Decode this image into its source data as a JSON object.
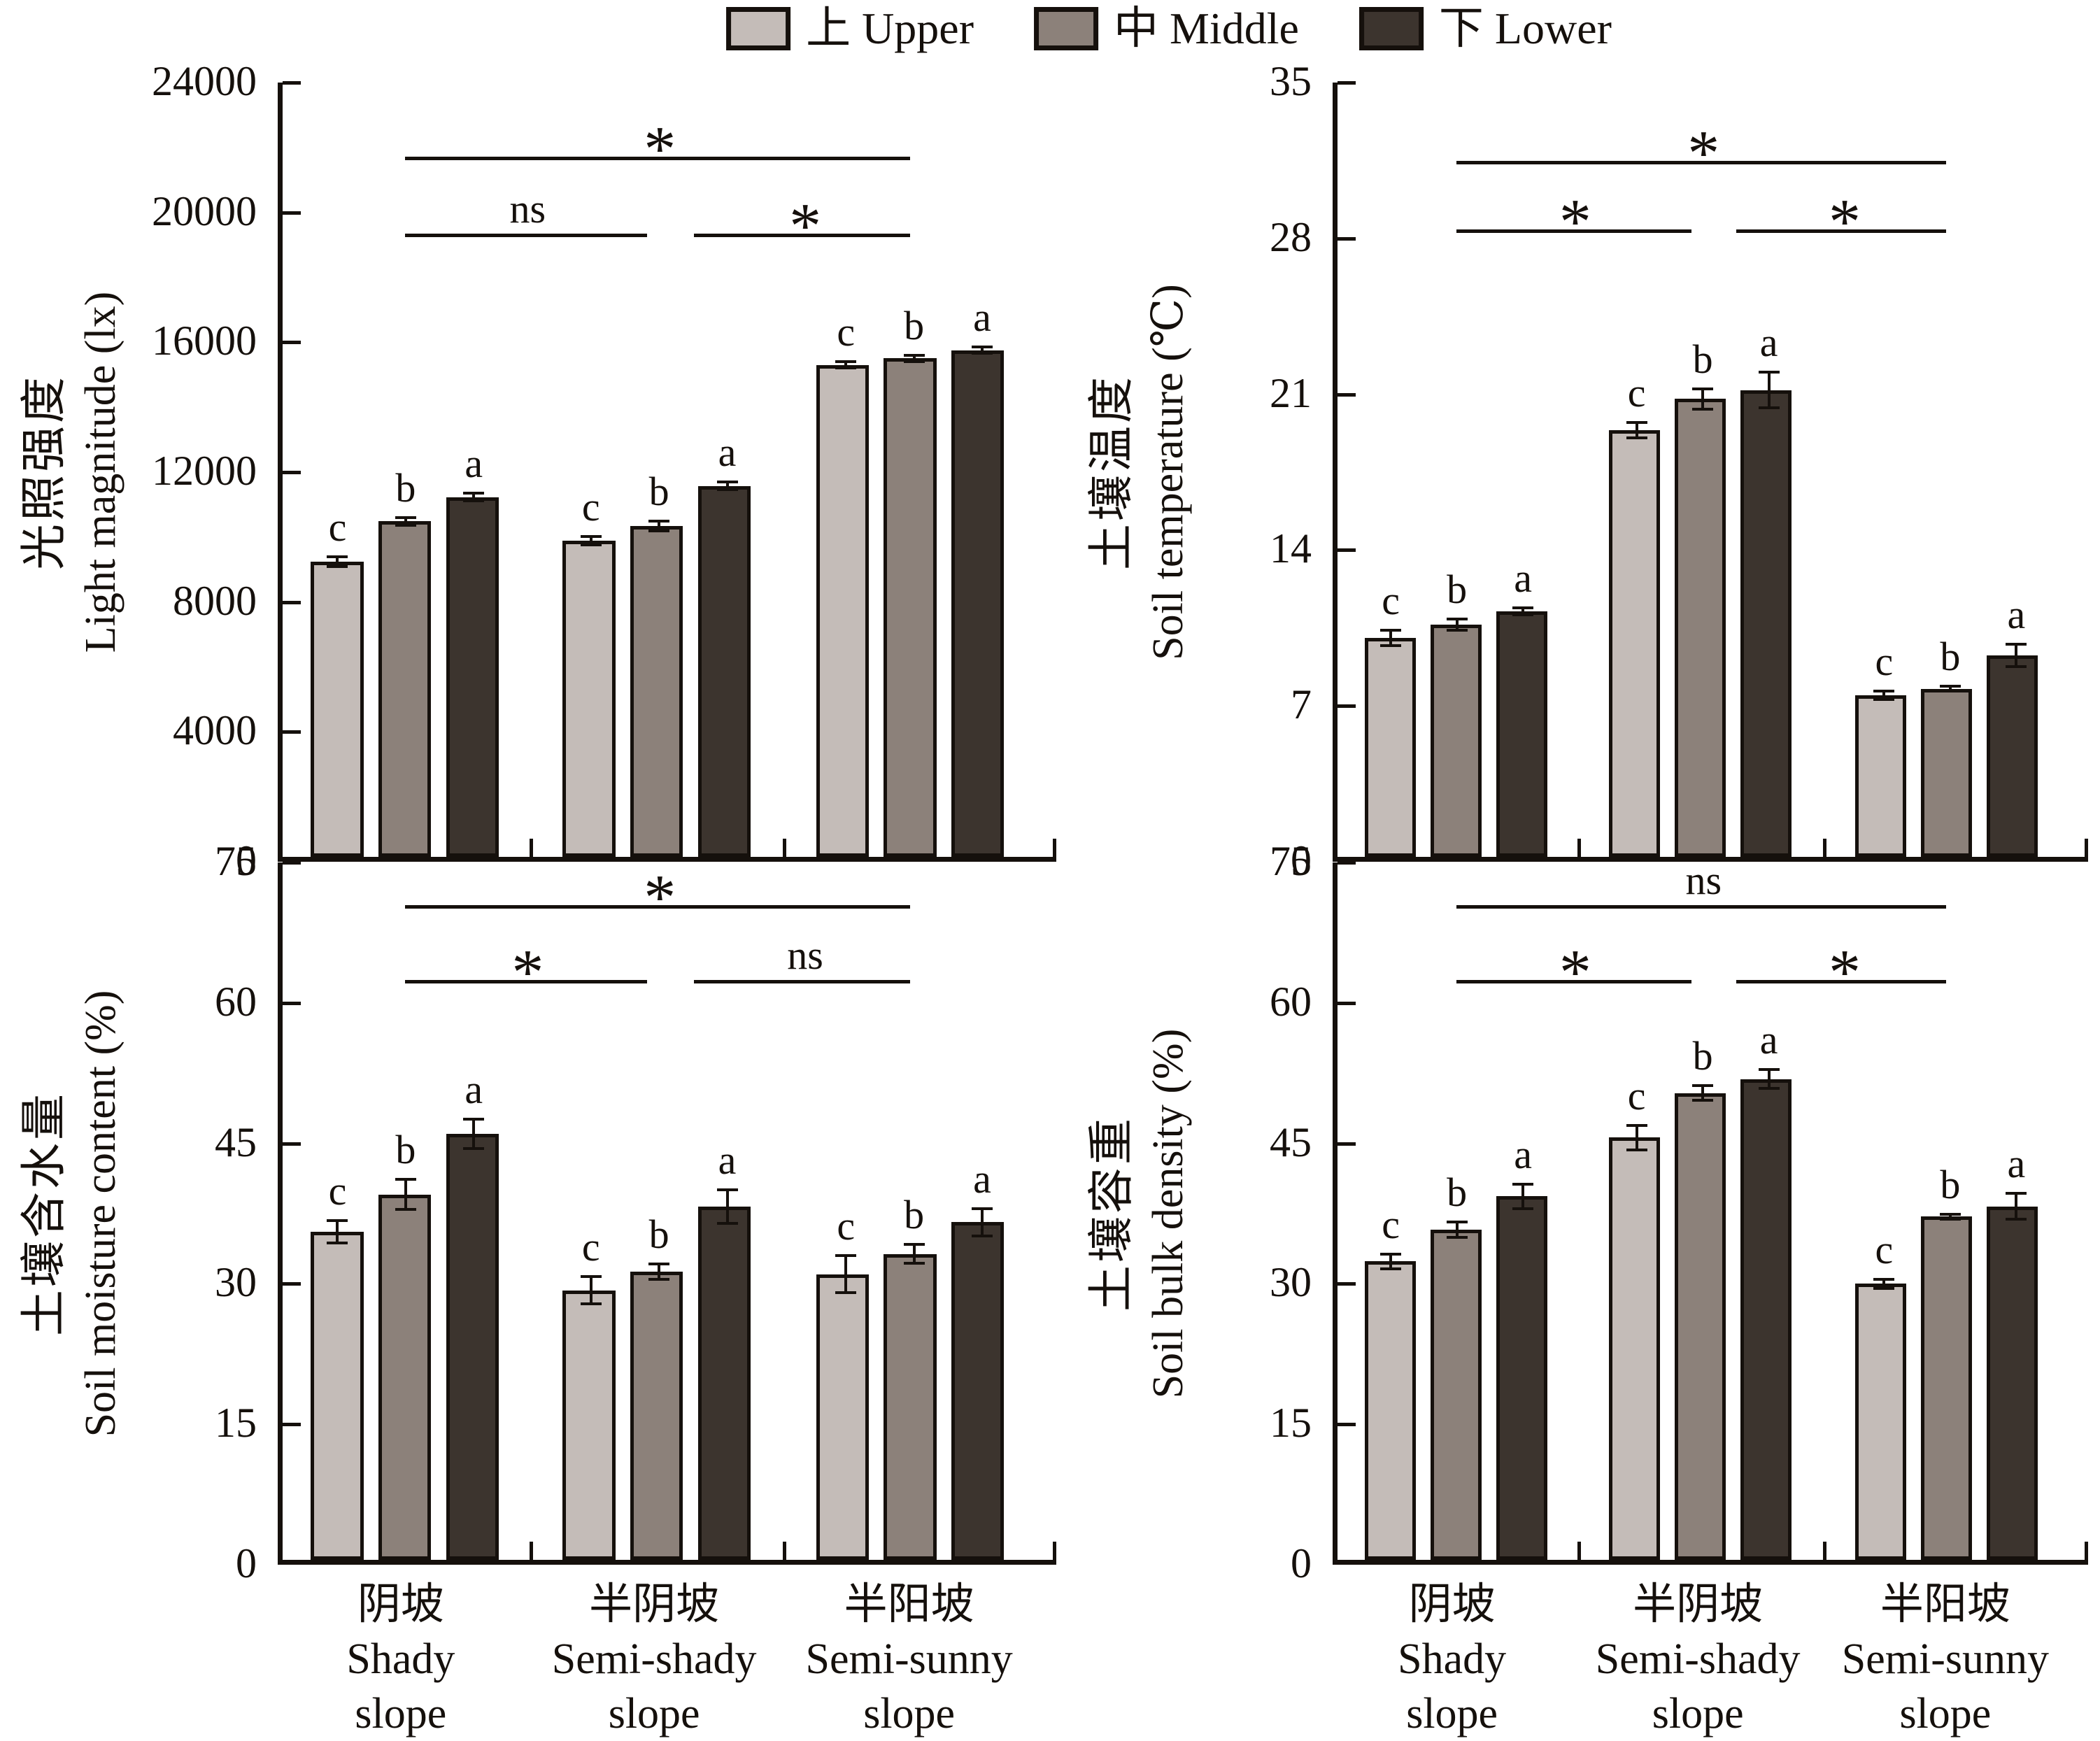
{
  "legend": {
    "items": [
      {
        "cn": "上",
        "en": "Upper",
        "color": "#c4bcb8"
      },
      {
        "cn": "中",
        "en": "Middle",
        "color": "#8c817a"
      },
      {
        "cn": "下",
        "en": "Lower",
        "color": "#3c342e"
      }
    ]
  },
  "categories": [
    {
      "cn": "阴坡",
      "en_line1": "Shady",
      "en_line2": "slope"
    },
    {
      "cn": "半阴坡",
      "en_line1": "Semi-shady",
      "en_line2": "slope"
    },
    {
      "cn": "半阳坡",
      "en_line1": "Semi-sunny",
      "en_line2": "slope"
    }
  ],
  "chart_data": [
    {
      "type": "bar",
      "id": "light-magnitude",
      "position": "top-left",
      "title_cn": "光照强度",
      "title_en": "Light magnitude (lx)",
      "ylim": [
        0,
        24000
      ],
      "ytick_step": 4000,
      "grid": false,
      "categories": [
        "阴坡 Shady slope",
        "半阴坡 Semi-shady slope",
        "半阳坡 Semi-sunny slope"
      ],
      "series": [
        {
          "name": "上 Upper",
          "values": [
            9150,
            9800,
            15250
          ],
          "errors": [
            150,
            120,
            100
          ]
        },
        {
          "name": "中 Middle",
          "values": [
            10400,
            10250,
            15450
          ],
          "errors": [
            120,
            150,
            100
          ]
        },
        {
          "name": "下 Lower",
          "values": [
            11150,
            11500,
            15700
          ],
          "errors": [
            120,
            120,
            100
          ]
        }
      ],
      "sig_letters": [
        [
          "c",
          "b",
          "a"
        ],
        [
          "c",
          "b",
          "a"
        ],
        [
          "c",
          "b",
          "a"
        ]
      ],
      "brackets": [
        {
          "from": 0,
          "to": 2,
          "label": "*",
          "level": 21600
        },
        {
          "from": 0,
          "to": 1,
          "label": "ns",
          "level": 19200
        },
        {
          "from": 1,
          "to": 2,
          "label": "*",
          "level": 19200
        }
      ]
    },
    {
      "type": "bar",
      "id": "soil-temperature",
      "position": "top-right",
      "title_cn": "土壤温度",
      "title_en": "Soil temperature (℃)",
      "ylim": [
        0,
        35
      ],
      "ytick_step": 7,
      "grid": false,
      "categories": [
        "阴坡 Shady slope",
        "半阴坡 Semi-shady slope",
        "半阳坡 Semi-sunny slope"
      ],
      "series": [
        {
          "name": "上 Upper",
          "values": [
            9.9,
            19.3,
            7.3
          ],
          "errors": [
            0.35,
            0.35,
            0.2
          ]
        },
        {
          "name": "中 Middle",
          "values": [
            10.5,
            20.7,
            7.6
          ],
          "errors": [
            0.25,
            0.45,
            0.12
          ]
        },
        {
          "name": "下 Lower",
          "values": [
            11.1,
            21.1,
            9.1
          ],
          "errors": [
            0.15,
            0.8,
            0.5
          ]
        }
      ],
      "sig_letters": [
        [
          "c",
          "b",
          "a"
        ],
        [
          "c",
          "b",
          "a"
        ],
        [
          "c",
          "b",
          "a"
        ]
      ],
      "brackets": [
        {
          "from": 0,
          "to": 2,
          "label": "*",
          "level": 31.3
        },
        {
          "from": 0,
          "to": 1,
          "label": "*",
          "level": 28.2
        },
        {
          "from": 1,
          "to": 2,
          "label": "*",
          "level": 28.2
        }
      ]
    },
    {
      "type": "bar",
      "id": "soil-moisture-content",
      "position": "bottom-left",
      "title_cn": "土壤含水量",
      "title_en": "Soil moisture content (%)",
      "ylim": [
        0,
        75
      ],
      "ytick_step": 15,
      "grid": false,
      "categories": [
        "阴坡 Shady slope",
        "半阴坡 Semi-shady slope",
        "半阳坡 Semi-sunny slope"
      ],
      "series": [
        {
          "name": "上 Upper",
          "values": [
            35.3,
            29.0,
            30.7
          ],
          "errors": [
            1.2,
            1.5,
            2.0
          ]
        },
        {
          "name": "中 Middle",
          "values": [
            39.3,
            31.0,
            32.9
          ],
          "errors": [
            1.6,
            0.8,
            1.0
          ]
        },
        {
          "name": "下 Lower",
          "values": [
            45.8,
            38.0,
            36.3
          ],
          "errors": [
            1.6,
            1.8,
            1.5
          ]
        }
      ],
      "sig_letters": [
        [
          "c",
          "b",
          "a"
        ],
        [
          "c",
          "b",
          "a"
        ],
        [
          "c",
          "b",
          "a"
        ]
      ],
      "brackets": [
        {
          "from": 0,
          "to": 2,
          "label": "*",
          "level": 70
        },
        {
          "from": 0,
          "to": 1,
          "label": "*",
          "level": 62
        },
        {
          "from": 1,
          "to": 2,
          "label": "ns",
          "level": 62
        }
      ]
    },
    {
      "type": "bar",
      "id": "soil-bulk-density",
      "position": "bottom-right",
      "title_cn": "土壤容重",
      "title_en": "Soil bulk density (%)",
      "ylim": [
        0,
        75
      ],
      "ytick_step": 15,
      "grid": false,
      "categories": [
        "阴坡 Shady slope",
        "半阴坡 Semi-shady slope",
        "半阳坡 Semi-sunny slope"
      ],
      "series": [
        {
          "name": "上 Upper",
          "values": [
            32.1,
            45.4,
            29.7
          ],
          "errors": [
            0.8,
            1.3,
            0.5
          ]
        },
        {
          "name": "中 Middle",
          "values": [
            35.5,
            50.2,
            36.9
          ],
          "errors": [
            0.8,
            0.8,
            0.3
          ]
        },
        {
          "name": "下 Lower",
          "values": [
            39.1,
            51.7,
            38.0
          ],
          "errors": [
            1.3,
            1.0,
            1.4
          ]
        }
      ],
      "sig_letters": [
        [
          "c",
          "b",
          "a"
        ],
        [
          "c",
          "b",
          "a"
        ],
        [
          "c",
          "b",
          "a"
        ]
      ],
      "brackets": [
        {
          "from": 0,
          "to": 2,
          "label": "ns",
          "level": 70
        },
        {
          "from": 0,
          "to": 1,
          "label": "*",
          "level": 62
        },
        {
          "from": 1,
          "to": 2,
          "label": "*",
          "level": 62
        }
      ]
    }
  ]
}
